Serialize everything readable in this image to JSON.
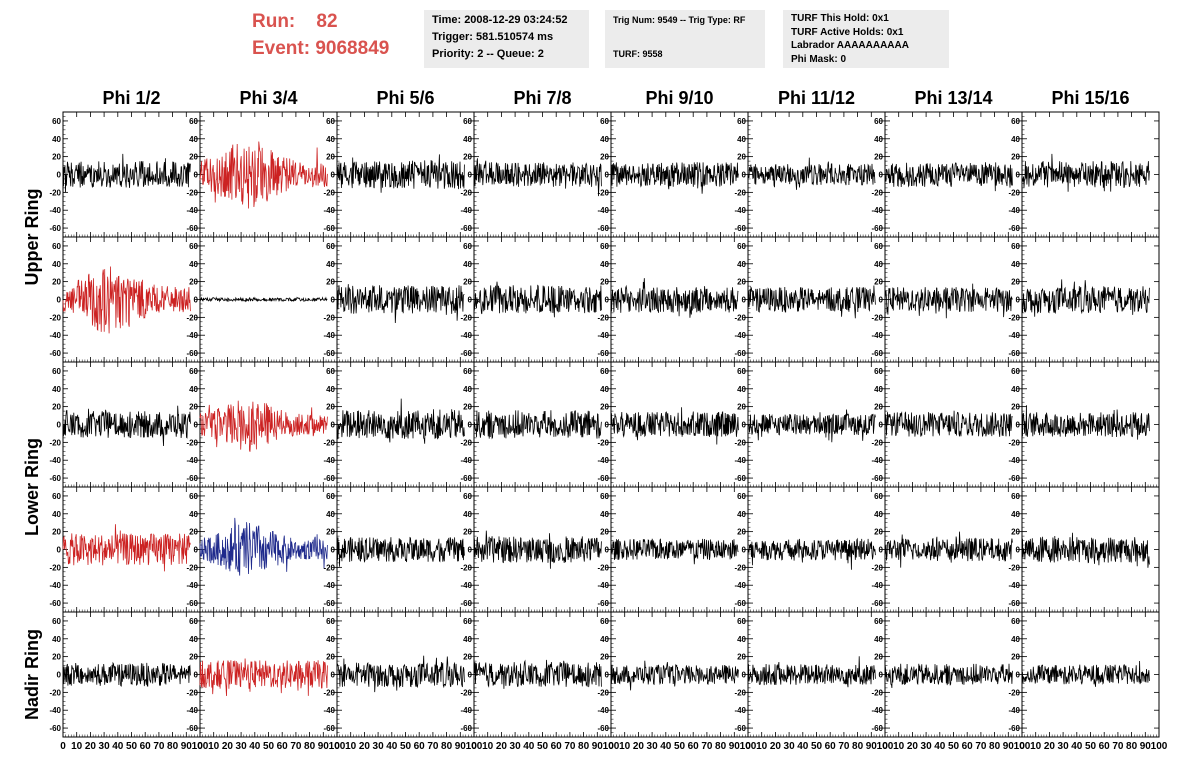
{
  "header": {
    "run_label": "Run:",
    "run_value": "82",
    "event_label": "Event:",
    "event_value": "9068849"
  },
  "info_boxes": [
    {
      "lines": [
        "Time: 2008-12-29 03:24:52",
        "Trigger: 581.510574 ms",
        "Priority: 2 -- Queue: 2"
      ]
    },
    {
      "lines": [
        "Trig Num: 9549 -- Trig Type: RF",
        "",
        "TURF: 9558"
      ]
    },
    {
      "lines": [
        "TURF This Hold: 0x1",
        "TURF Active Holds: 0x1",
        "Labrador AAAAAAAAAA",
        "Phi Mask: 0"
      ]
    }
  ],
  "colors": {
    "black": "#000000",
    "red": "#cc2222",
    "blue": "#1f2a8c",
    "title_red": "#d9534f"
  },
  "chart_data": {
    "type": "line",
    "columns": [
      "Phi 1/2",
      "Phi 3/4",
      "Phi 5/6",
      "Phi 7/8",
      "Phi 9/10",
      "Phi 11/12",
      "Phi 13/14",
      "Phi 15/16"
    ],
    "rows": [
      "Upper Ring",
      "",
      "Lower Ring",
      "",
      "Nadir Ring"
    ],
    "x_ticks": [
      "0",
      "10",
      "20",
      "30",
      "40",
      "50",
      "60",
      "70",
      "80",
      "90",
      "100"
    ],
    "xlim": [
      0,
      100
    ],
    "y_ticks": [
      "60",
      "40",
      "20",
      "0",
      "-20",
      "-40",
      "-60"
    ],
    "ylim": [
      -70,
      70
    ],
    "trace_colors": [
      [
        "black",
        "red",
        "black",
        "black",
        "black",
        "black",
        "black",
        "black"
      ],
      [
        "red",
        "black",
        "black",
        "black",
        "black",
        "black",
        "black",
        "black"
      ],
      [
        "black",
        "red",
        "black",
        "black",
        "black",
        "black",
        "black",
        "black"
      ],
      [
        "red",
        "blue",
        "black",
        "black",
        "black",
        "black",
        "black",
        "black"
      ],
      [
        "black",
        "red",
        "black",
        "black",
        "black",
        "black",
        "black",
        "black"
      ]
    ],
    "trace_amplitude": [
      [
        15,
        28,
        16,
        14,
        14,
        12,
        14,
        15
      ],
      [
        28,
        2,
        16,
        16,
        15,
        14,
        14,
        15
      ],
      [
        15,
        22,
        17,
        16,
        14,
        12,
        14,
        14
      ],
      [
        18,
        22,
        14,
        15,
        12,
        12,
        13,
        15
      ],
      [
        13,
        16,
        14,
        14,
        11,
        12,
        12,
        11
      ]
    ]
  }
}
